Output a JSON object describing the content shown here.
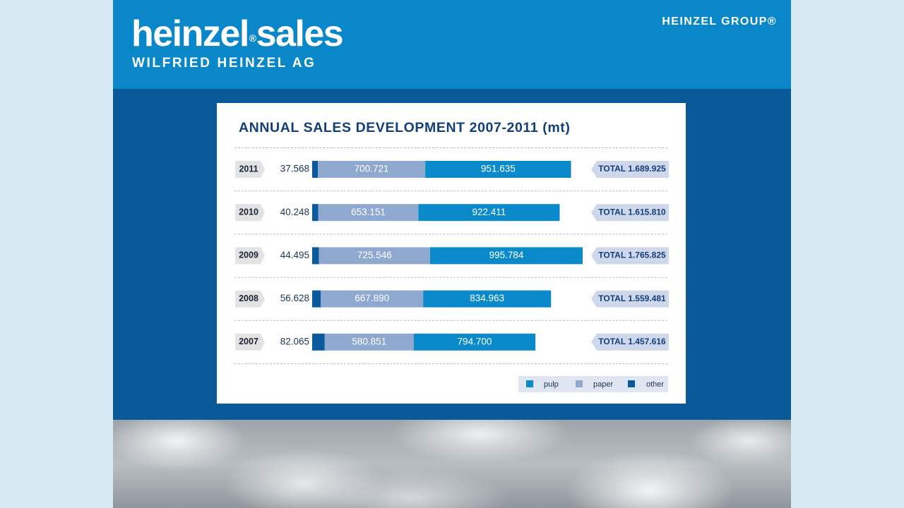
{
  "header": {
    "logo": {
      "part1": "heinzel",
      "reg": "®",
      "part2": "sales"
    },
    "subtitle": "WILFRIED HEINZEL AG",
    "group": "HEINZEL GROUP®"
  },
  "colors": {
    "header_bg": "#0a87c8",
    "band_bg": "#0a5a99",
    "pulp": "#0a8acb",
    "paper": "#8fa8d0",
    "other": "#0b5a9e",
    "title": "#123f79"
  },
  "chart_data": {
    "type": "bar",
    "orientation": "horizontal",
    "stacked": true,
    "title": "ANNUAL SALES DEVELOPMENT 2007-2011 (mt)",
    "categories": [
      "2011",
      "2010",
      "2009",
      "2008",
      "2007"
    ],
    "series": [
      {
        "name": "other",
        "values": [
          37568,
          40248,
          44495,
          56628,
          82065
        ],
        "labels": [
          "37.568",
          "40.248",
          "44.495",
          "56.628",
          "82.065"
        ]
      },
      {
        "name": "paper",
        "values": [
          700721,
          653151,
          725546,
          667890,
          580851
        ],
        "labels": [
          "700.721",
          "653.151",
          "725.546",
          "667.890",
          "580.851"
        ]
      },
      {
        "name": "pulp",
        "values": [
          951635,
          922411,
          995784,
          834963,
          794700
        ],
        "labels": [
          "951.635",
          "922.411",
          "995.784",
          "834.963",
          "794.700"
        ]
      }
    ],
    "totals": [
      "TOTAL 1.689.925",
      "TOTAL 1.615.810",
      "TOTAL 1.765.825",
      "TOTAL 1.559.481",
      "TOTAL 1.457.616"
    ],
    "legend": [
      "pulp",
      "paper",
      "other"
    ],
    "legend_position": "bottom-right",
    "grid": false
  }
}
